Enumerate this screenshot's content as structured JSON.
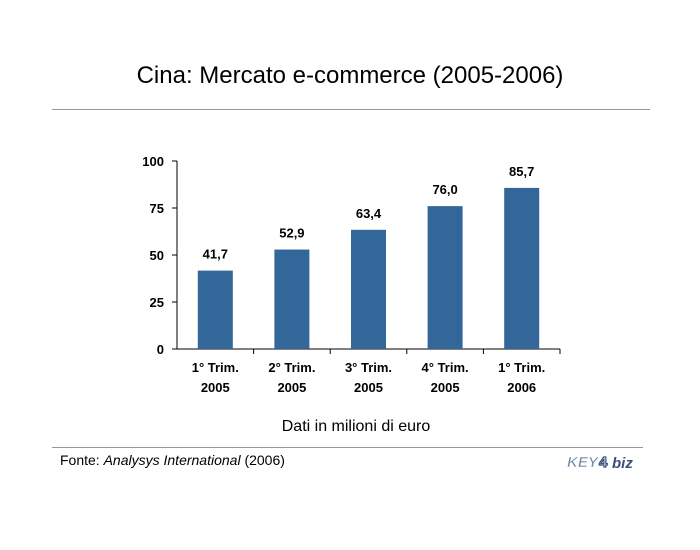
{
  "chart_data": {
    "type": "bar",
    "title": "Cina: Mercato e-commerce (2005-2006)",
    "categories": [
      [
        "1° Trim.",
        "2005"
      ],
      [
        "2° Trim.",
        "2005"
      ],
      [
        "3° Trim.",
        "2005"
      ],
      [
        "4° Trim.",
        "2005"
      ],
      [
        "1° Trim.",
        "2006"
      ]
    ],
    "values": [
      41.7,
      52.9,
      63.4,
      76.0,
      85.7
    ],
    "data_labels": [
      "41,7",
      "52,9",
      "63,4",
      "76,0",
      "85,7"
    ],
    "ylim": [
      0,
      100
    ],
    "yticks": [
      0,
      25,
      50,
      75,
      100
    ],
    "grid": false,
    "bar_color": "#336699",
    "note": "Dati in milioni di euro"
  },
  "footer": {
    "source_prefix": "Fonte: ",
    "source_name": "Analysys International",
    "source_suffix": " (2006)",
    "logo_text_left": "KEY",
    "logo_text_num": "4",
    "logo_text_right": "biz",
    "logo_colors": {
      "key": "#6b86a6",
      "biz": "#3a4f7a"
    }
  }
}
